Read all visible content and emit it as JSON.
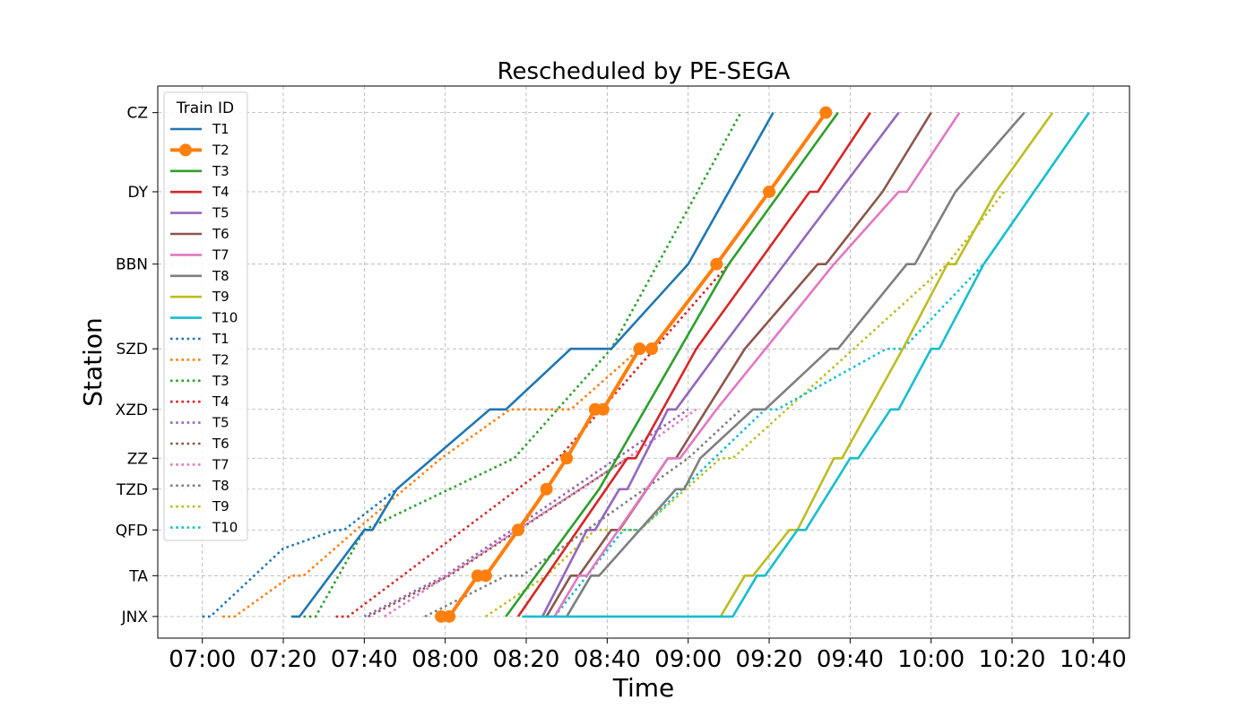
{
  "chart_data": {
    "type": "line",
    "title": "Rescheduled by PE-SEGA",
    "xlabel": "Time",
    "ylabel": "Station",
    "grid": true,
    "legend_title": "Train ID",
    "legend_position": "upper-left",
    "x_ticks": [
      "07:00",
      "07:20",
      "07:40",
      "08:00",
      "08:20",
      "08:40",
      "09:00",
      "09:20",
      "09:40",
      "10:00",
      "10:20",
      "10:40"
    ],
    "xlim": [
      "06:49",
      "10:49"
    ],
    "stations": [
      {
        "name": "JNX",
        "km": 0
      },
      {
        "name": "TA",
        "km": 66
      },
      {
        "name": "QFD",
        "km": 140
      },
      {
        "name": "TZD",
        "km": 206
      },
      {
        "name": "ZZ",
        "km": 256
      },
      {
        "name": "XZD",
        "km": 335
      },
      {
        "name": "SZD",
        "km": 433
      },
      {
        "name": "BBN",
        "km": 570
      },
      {
        "name": "DY",
        "km": 687
      },
      {
        "name": "CZ",
        "km": 815
      }
    ],
    "ylim": [
      -35,
      858
    ],
    "series": [
      {
        "name": "T1",
        "color": "#1f77b4",
        "style": "solid",
        "points": [
          [
            "07:22",
            0
          ],
          [
            "07:24",
            0
          ],
          [
            "07:40",
            140
          ],
          [
            "07:42",
            140
          ],
          [
            "07:48",
            206
          ],
          [
            "08:11",
            335
          ],
          [
            "08:15",
            335
          ],
          [
            "08:31",
            433
          ],
          [
            "08:41",
            433
          ],
          [
            "09:00",
            570
          ],
          [
            "09:21",
            815
          ]
        ]
      },
      {
        "name": "T2",
        "color": "#ff7f0e",
        "style": "marker",
        "points": [
          [
            "07:59",
            0
          ],
          [
            "08:01",
            0
          ],
          [
            "08:08",
            66
          ],
          [
            "08:10",
            66
          ],
          [
            "08:18",
            140
          ],
          [
            "08:25",
            206
          ],
          [
            "08:30",
            256
          ],
          [
            "08:37",
            335
          ],
          [
            "08:39",
            335
          ],
          [
            "08:48",
            433
          ],
          [
            "08:51",
            433
          ],
          [
            "09:07",
            570
          ],
          [
            "09:20",
            687
          ],
          [
            "09:34",
            815
          ]
        ]
      },
      {
        "name": "T3",
        "color": "#2ca02c",
        "style": "solid",
        "points": [
          [
            "08:15",
            0
          ],
          [
            "08:38",
            206
          ],
          [
            "09:10",
            570
          ],
          [
            "09:37",
            815
          ]
        ]
      },
      {
        "name": "T4",
        "color": "#d62728",
        "style": "solid",
        "points": [
          [
            "08:18",
            0
          ],
          [
            "08:45",
            256
          ],
          [
            "08:47",
            256
          ],
          [
            "09:02",
            433
          ],
          [
            "09:30",
            687
          ],
          [
            "09:32",
            687
          ],
          [
            "09:45",
            815
          ]
        ]
      },
      {
        "name": "T5",
        "color": "#9467bd",
        "style": "solid",
        "points": [
          [
            "08:24",
            0
          ],
          [
            "08:35",
            140
          ],
          [
            "08:37",
            140
          ],
          [
            "08:43",
            206
          ],
          [
            "08:45",
            206
          ],
          [
            "08:55",
            335
          ],
          [
            "08:57",
            335
          ],
          [
            "09:08",
            433
          ],
          [
            "09:52",
            815
          ]
        ]
      },
      {
        "name": "T6",
        "color": "#8c564b",
        "style": "solid",
        "points": [
          [
            "08:25",
            0
          ],
          [
            "08:31",
            66
          ],
          [
            "08:33",
            66
          ],
          [
            "08:41",
            140
          ],
          [
            "08:43",
            140
          ],
          [
            "08:55",
            256
          ],
          [
            "08:57",
            256
          ],
          [
            "09:14",
            433
          ],
          [
            "09:32",
            570
          ],
          [
            "09:34",
            570
          ],
          [
            "09:48",
            687
          ],
          [
            "10:00",
            815
          ]
        ]
      },
      {
        "name": "T7",
        "color": "#e377c2",
        "style": "solid",
        "points": [
          [
            "08:27",
            0
          ],
          [
            "08:33",
            66
          ],
          [
            "08:35",
            66
          ],
          [
            "08:55",
            256
          ],
          [
            "08:58",
            256
          ],
          [
            "09:07",
            335
          ],
          [
            "09:36",
            570
          ],
          [
            "09:52",
            687
          ],
          [
            "09:54",
            687
          ],
          [
            "10:07",
            815
          ]
        ]
      },
      {
        "name": "T8",
        "color": "#7f7f7f",
        "style": "solid",
        "points": [
          [
            "08:30",
            0
          ],
          [
            "08:36",
            66
          ],
          [
            "08:38",
            66
          ],
          [
            "08:57",
            206
          ],
          [
            "08:59",
            206
          ],
          [
            "09:03",
            256
          ],
          [
            "09:16",
            335
          ],
          [
            "09:19",
            335
          ],
          [
            "09:35",
            433
          ],
          [
            "09:37",
            433
          ],
          [
            "09:54",
            570
          ],
          [
            "09:56",
            570
          ],
          [
            "10:06",
            687
          ],
          [
            "10:23",
            815
          ]
        ]
      },
      {
        "name": "T9",
        "color": "#bcbd22",
        "style": "solid",
        "points": [
          [
            "09:08",
            0
          ],
          [
            "09:14",
            66
          ],
          [
            "09:16",
            66
          ],
          [
            "09:25",
            140
          ],
          [
            "09:27",
            140
          ],
          [
            "09:36",
            256
          ],
          [
            "09:38",
            256
          ],
          [
            "09:53",
            433
          ],
          [
            "10:04",
            570
          ],
          [
            "10:06",
            570
          ],
          [
            "10:16",
            687
          ],
          [
            "10:30",
            815
          ]
        ]
      },
      {
        "name": "T10",
        "color": "#17becf",
        "style": "solid",
        "points": [
          [
            "08:19",
            0
          ],
          [
            "09:11",
            0
          ],
          [
            "09:17",
            66
          ],
          [
            "09:19",
            66
          ],
          [
            "09:27",
            140
          ],
          [
            "09:29",
            140
          ],
          [
            "09:40",
            256
          ],
          [
            "09:42",
            256
          ],
          [
            "09:50",
            335
          ],
          [
            "09:52",
            335
          ],
          [
            "10:00",
            433
          ],
          [
            "10:02",
            433
          ],
          [
            "10:13",
            570
          ],
          [
            "10:39",
            815
          ]
        ]
      },
      {
        "name": "T1",
        "color": "#1f77b4",
        "style": "dotted",
        "points": [
          [
            "07:00",
            0
          ],
          [
            "07:02",
            0
          ],
          [
            "07:20",
            110
          ],
          [
            "07:33",
            140
          ],
          [
            "07:35",
            140
          ],
          [
            "07:48",
            206
          ]
        ]
      },
      {
        "name": "T2",
        "color": "#ff7f0e",
        "style": "dotted",
        "points": [
          [
            "07:05",
            0
          ],
          [
            "07:08",
            0
          ],
          [
            "07:22",
            66
          ],
          [
            "07:25",
            66
          ],
          [
            "07:38",
            140
          ],
          [
            "07:59",
            256
          ],
          [
            "08:16",
            335
          ],
          [
            "08:31",
            335
          ],
          [
            "08:48",
            433
          ]
        ]
      },
      {
        "name": "T3",
        "color": "#2ca02c",
        "style": "dotted",
        "points": [
          [
            "07:25",
            0
          ],
          [
            "07:28",
            0
          ],
          [
            "07:40",
            140
          ],
          [
            "08:17",
            256
          ],
          [
            "08:41",
            433
          ],
          [
            "09:13",
            815
          ]
        ]
      },
      {
        "name": "T4",
        "color": "#d62728",
        "style": "dotted",
        "points": [
          [
            "07:33",
            0
          ],
          [
            "07:36",
            0
          ],
          [
            "08:28",
            256
          ],
          [
            "09:10",
            570
          ]
        ]
      },
      {
        "name": "T5",
        "color": "#9467bd",
        "style": "dotted",
        "points": [
          [
            "07:40",
            0
          ],
          [
            "08:00",
            66
          ],
          [
            "09:00",
            335
          ]
        ]
      },
      {
        "name": "T6",
        "color": "#8c564b",
        "style": "dotted",
        "points": [
          [
            "07:41",
            0
          ],
          [
            "08:01",
            66
          ],
          [
            "08:45",
            256
          ]
        ]
      },
      {
        "name": "T7",
        "color": "#e377c2",
        "style": "dotted",
        "points": [
          [
            "07:45",
            0
          ],
          [
            "08:45",
            256
          ],
          [
            "09:02",
            335
          ]
        ]
      },
      {
        "name": "T8",
        "color": "#7f7f7f",
        "style": "dotted",
        "points": [
          [
            "07:55",
            0
          ],
          [
            "08:15",
            66
          ],
          [
            "08:19",
            66
          ],
          [
            "09:00",
            256
          ],
          [
            "09:13",
            335
          ]
        ]
      },
      {
        "name": "T9",
        "color": "#bcbd22",
        "style": "dotted",
        "points": [
          [
            "08:10",
            0
          ],
          [
            "08:25",
            66
          ],
          [
            "08:37",
            140
          ],
          [
            "08:48",
            140
          ],
          [
            "09:08",
            256
          ],
          [
            "09:11",
            256
          ],
          [
            "10:04",
            570
          ],
          [
            "10:18",
            687
          ]
        ]
      },
      {
        "name": "T10",
        "color": "#17becf",
        "style": "dotted",
        "points": [
          [
            "08:27",
            0
          ],
          [
            "08:44",
            140
          ],
          [
            "08:48",
            140
          ],
          [
            "09:19",
            335
          ],
          [
            "09:22",
            335
          ],
          [
            "09:49",
            433
          ],
          [
            "09:53",
            433
          ],
          [
            "10:13",
            570
          ]
        ]
      }
    ]
  }
}
